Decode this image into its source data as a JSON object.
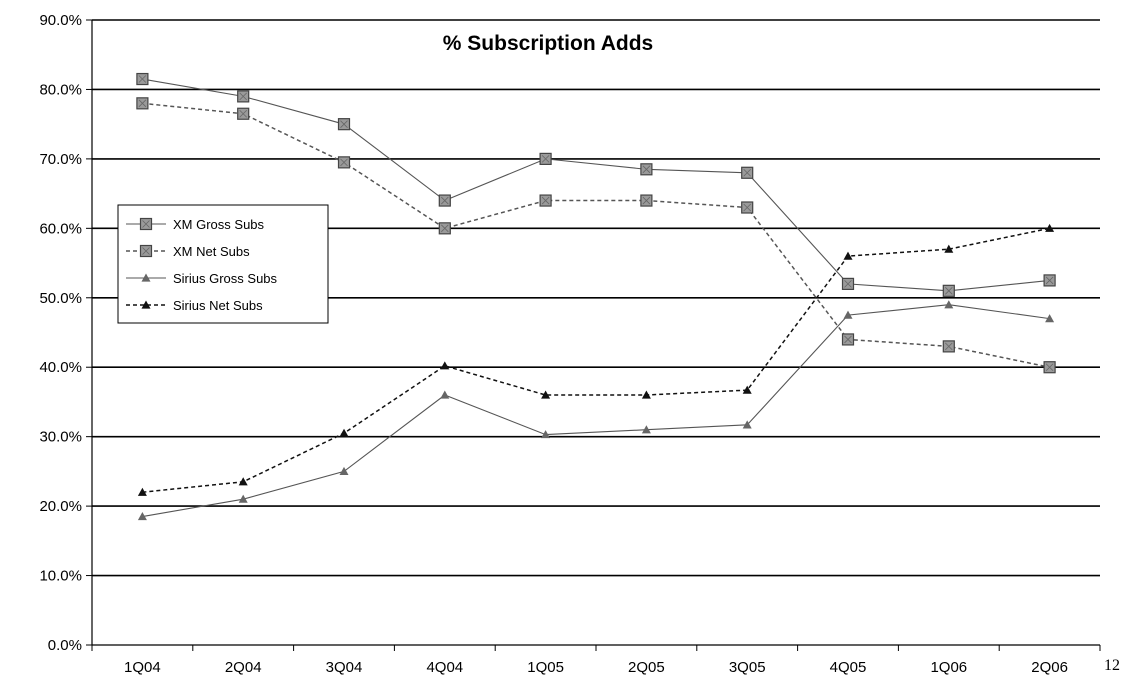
{
  "chart_data": {
    "type": "line",
    "title": "% Subscription Adds",
    "xlabel": "",
    "ylabel": "",
    "ylim": [
      0,
      90
    ],
    "ytick_labels": [
      "0.0%",
      "10.0%",
      "20.0%",
      "30.0%",
      "40.0%",
      "50.0%",
      "60.0%",
      "70.0%",
      "80.0%",
      "90.0%"
    ],
    "categories": [
      "1Q04",
      "2Q04",
      "3Q04",
      "4Q04",
      "1Q05",
      "2Q05",
      "3Q05",
      "4Q05",
      "1Q06",
      "2Q06"
    ],
    "grid": "horizontal",
    "legend_position": "left",
    "series": [
      {
        "name": "XM Gross Subs",
        "marker": "square",
        "line": "solid",
        "color": "#555555",
        "values": [
          81.5,
          79.0,
          75.0,
          64.0,
          70.0,
          68.5,
          68.0,
          52.0,
          51.0,
          52.5
        ]
      },
      {
        "name": "XM Net Subs",
        "marker": "square",
        "line": "dashed",
        "color": "#555555",
        "values": [
          78.0,
          76.5,
          69.5,
          60.0,
          64.0,
          64.0,
          63.0,
          44.0,
          43.0,
          40.0
        ]
      },
      {
        "name": "Sirius Gross Subs",
        "marker": "triangle",
        "line": "solid",
        "color": "#555555",
        "values": [
          18.5,
          21.0,
          25.0,
          36.0,
          30.3,
          31.0,
          31.7,
          47.5,
          49.0,
          47.0
        ]
      },
      {
        "name": "Sirius Net Subs",
        "marker": "triangle",
        "line": "dashed",
        "color": "#111111",
        "values": [
          22.0,
          23.5,
          30.5,
          40.2,
          36.0,
          36.0,
          36.7,
          56.0,
          57.0,
          60.0
        ]
      }
    ]
  },
  "page_number": "12"
}
